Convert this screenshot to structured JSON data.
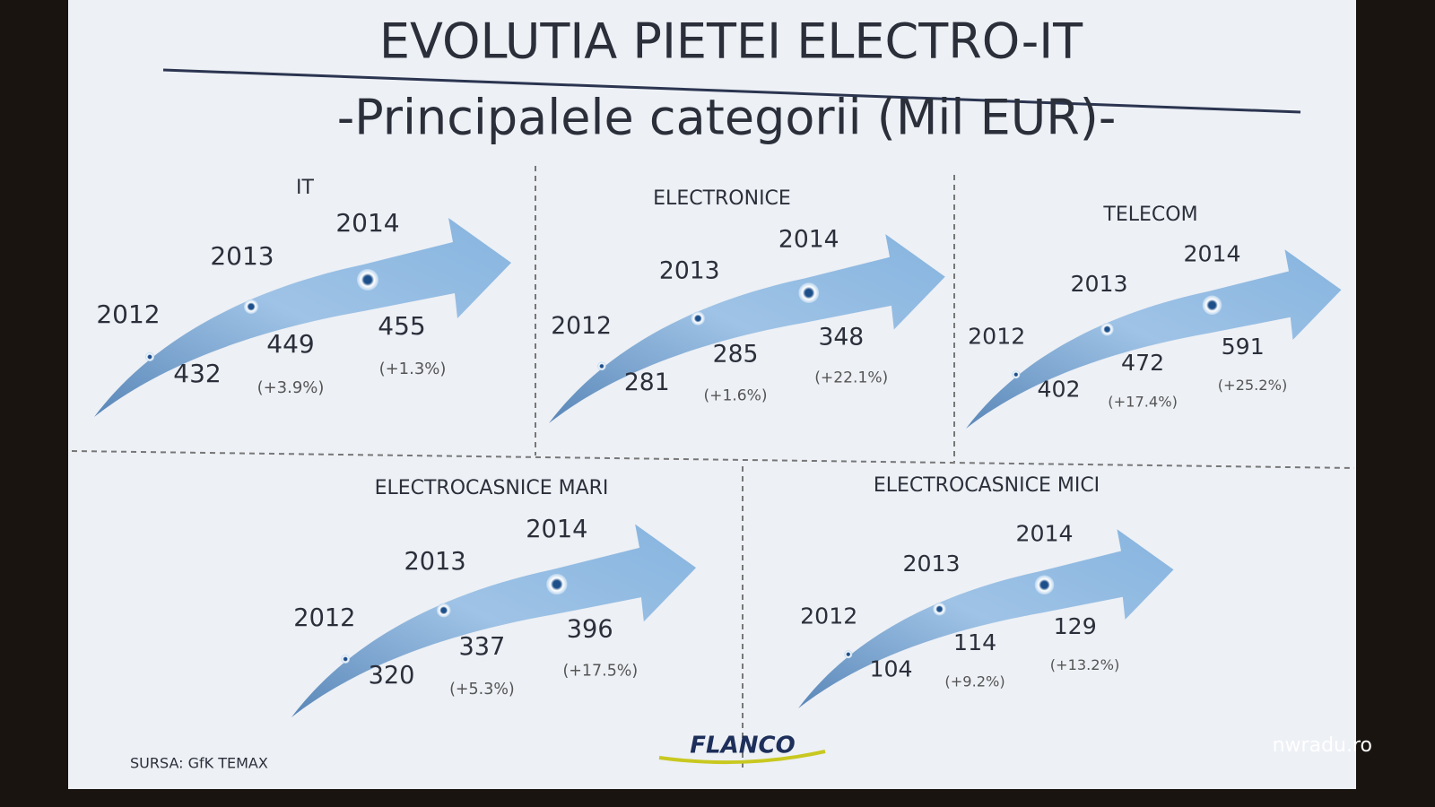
{
  "header": {
    "title": "EVOLUTIA PIETEI ELECTRO-IT",
    "subtitle": "-Principalele categorii (Mil EUR)-"
  },
  "panels": [
    {
      "title": "IT",
      "points": [
        {
          "year": "2012",
          "value": "432"
        },
        {
          "year": "2013",
          "value": "449",
          "change": "(+3.9%)"
        },
        {
          "year": "2014",
          "value": "455",
          "change": "(+1.3%)"
        }
      ]
    },
    {
      "title": "ELECTRONICE",
      "points": [
        {
          "year": "2012",
          "value": "281"
        },
        {
          "year": "2013",
          "value": "285",
          "change": "(+1.6%)"
        },
        {
          "year": "2014",
          "value": "348",
          "change": "(+22.1%)"
        }
      ]
    },
    {
      "title": "TELECOM",
      "points": [
        {
          "year": "2012",
          "value": "402"
        },
        {
          "year": "2013",
          "value": "472",
          "change": "(+17.4%)"
        },
        {
          "year": "2014",
          "value": "591",
          "change": "(+25.2%)"
        }
      ]
    },
    {
      "title": "ELECTROCASNICE MARI",
      "points": [
        {
          "year": "2012",
          "value": "320"
        },
        {
          "year": "2013",
          "value": "337",
          "change": "(+5.3%)"
        },
        {
          "year": "2014",
          "value": "396",
          "change": "(+17.5%)"
        }
      ]
    },
    {
      "title": "ELECTROCASNICE MICI",
      "points": [
        {
          "year": "2012",
          "value": "104"
        },
        {
          "year": "2013",
          "value": "114",
          "change": "(+9.2%)"
        },
        {
          "year": "2014",
          "value": "129",
          "change": "(+13.2%)"
        }
      ]
    }
  ],
  "footer": {
    "source": "SURSA: GfK TEMAX",
    "logo": "FLANCO",
    "watermark": "nwradu.ro"
  }
}
